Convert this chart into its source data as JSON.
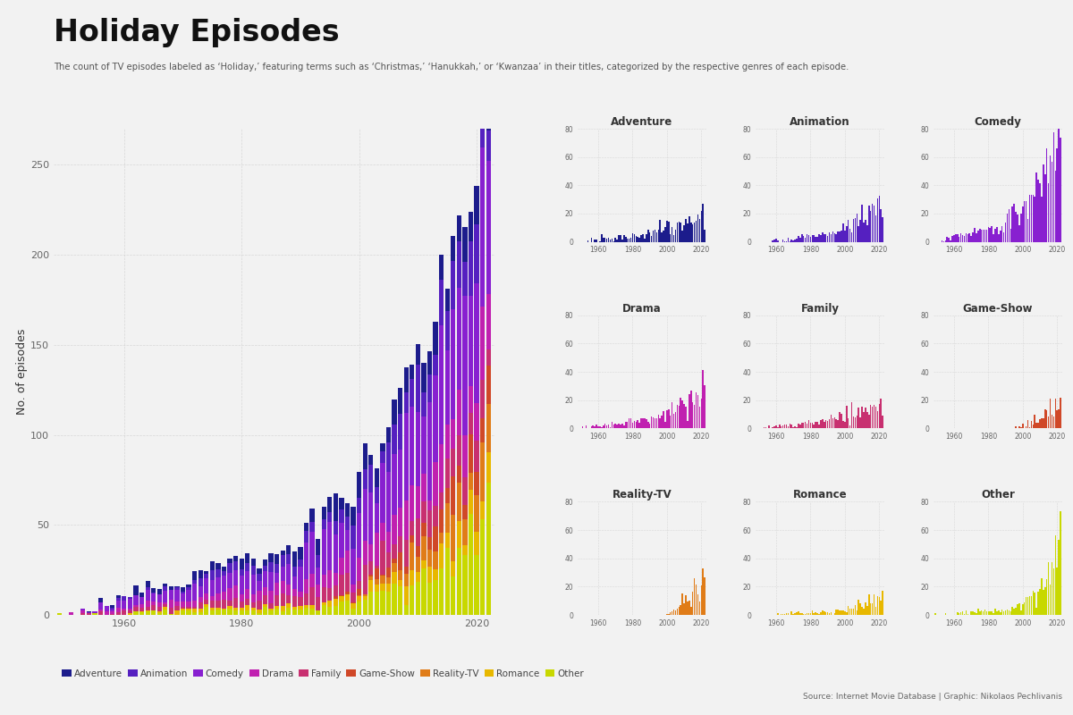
{
  "title": "Holiday Episodes",
  "subtitle": "The count of TV episodes labeled as ‘Holiday,’ featuring terms such as ‘Christmas,’ ‘Hanukkah,’ or ‘Kwanzaa’ in their titles, categorized by the respective genres of each episode.",
  "source_text_plain": "Source: ",
  "source_text_bold1": "Internet Movie Database",
  "source_text_mid": " | Graphic: ",
  "source_text_bold2": "Nikolaos Pechlivanis",
  "ylabel": "No. of episodes",
  "background_color": "#f2f2f2",
  "panel_color": "#f2f2f2",
  "grid_color": "#cccccc",
  "genres_stack_order": [
    "Other",
    "Romance",
    "Reality-TV",
    "Game-Show",
    "Family",
    "Drama",
    "Comedy",
    "Animation",
    "Adventure"
  ],
  "genres_legend_order": [
    "Adventure",
    "Animation",
    "Comedy",
    "Drama",
    "Family",
    "Game-Show",
    "Reality-TV",
    "Romance",
    "Other"
  ],
  "genre_colors": {
    "Adventure": "#1c1c8c",
    "Animation": "#5520c0",
    "Comedy": "#8820d0",
    "Drama": "#c020b0",
    "Family": "#c83070",
    "Game-Show": "#d04828",
    "Reality-TV": "#e07c18",
    "Romance": "#e8b800",
    "Other": "#c8d800"
  },
  "year_start": 1949,
  "year_end": 2022
}
